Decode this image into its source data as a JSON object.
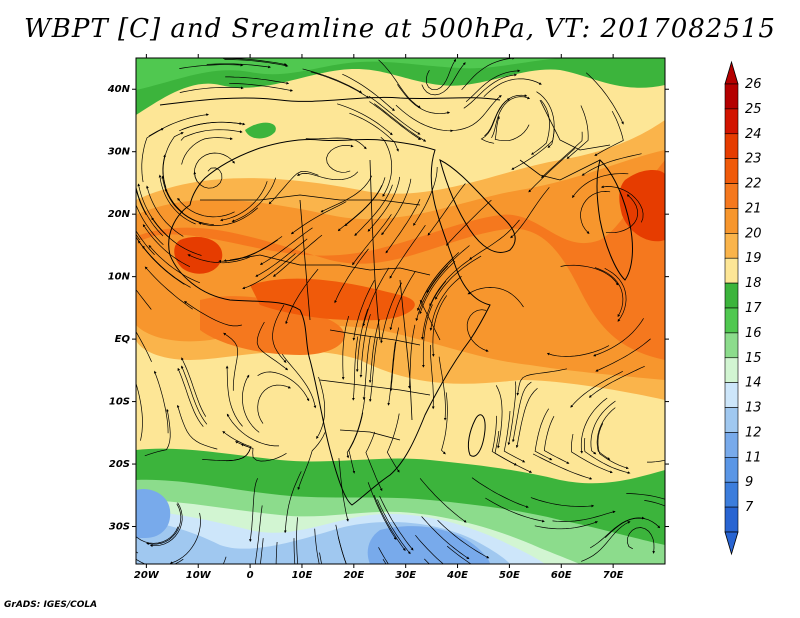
{
  "title": "WBPT [C] and Sreamline at 500hPa, VT: 2017082515",
  "credit": "GrADS: IGES/COLA",
  "map": {
    "lon_range": [
      -22,
      80
    ],
    "lat_range": [
      -36,
      45
    ],
    "lat_ticks": [
      {
        "lat": 40,
        "label": "40N"
      },
      {
        "lat": 30,
        "label": "30N"
      },
      {
        "lat": 20,
        "label": "20N"
      },
      {
        "lat": 10,
        "label": "10N"
      },
      {
        "lat": 0,
        "label": "EQ"
      },
      {
        "lat": -10,
        "label": "10S"
      },
      {
        "lat": -20,
        "label": "20S"
      },
      {
        "lat": -30,
        "label": "30S"
      }
    ],
    "lon_ticks": [
      {
        "lon": -20,
        "label": "20W"
      },
      {
        "lon": -10,
        "label": "10W"
      },
      {
        "lon": 0,
        "label": "0"
      },
      {
        "lon": 10,
        "label": "10E"
      },
      {
        "lon": 20,
        "label": "20E"
      },
      {
        "lon": 30,
        "label": "30E"
      },
      {
        "lon": 40,
        "label": "40E"
      },
      {
        "lon": 50,
        "label": "50E"
      },
      {
        "lon": 60,
        "label": "60E"
      },
      {
        "lon": 70,
        "label": "70E"
      }
    ]
  },
  "colorbar": {
    "labels": [
      "26",
      "25",
      "24",
      "23",
      "22",
      "21",
      "20",
      "19",
      "18",
      "17",
      "16",
      "15",
      "14",
      "13",
      "12",
      "11",
      "9",
      "7"
    ],
    "colors": [
      "#b40000",
      "#d21400",
      "#e63c00",
      "#f05a0a",
      "#f5781e",
      "#f7962d",
      "#fab44b",
      "#fde696",
      "#3cb43c",
      "#50c850",
      "#8cdc8c",
      "#d2f5d2",
      "#cde6fa",
      "#a0c8f0",
      "#78aaeb",
      "#5a96e6",
      "#3c7ddc",
      "#2864d2"
    ]
  }
}
